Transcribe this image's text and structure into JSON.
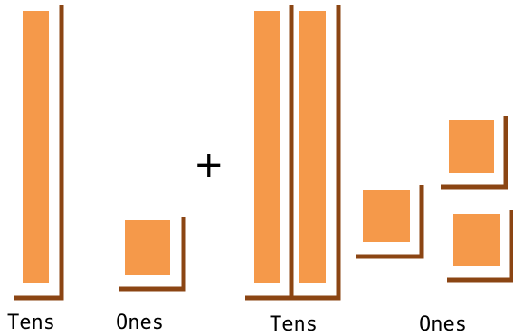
{
  "colors": {
    "block_fill": "#F5994A",
    "bracket": "#8B4513",
    "text": "#000000",
    "background": "#FFFFFF"
  },
  "left_group": {
    "tens_count": 1,
    "ones_count": 1,
    "tens_label": "Tens",
    "ones_label": "Ones"
  },
  "operator": "+",
  "right_group": {
    "tens_count": 2,
    "ones_count": 3,
    "tens_label": "Tens",
    "ones_label": "Ones"
  }
}
